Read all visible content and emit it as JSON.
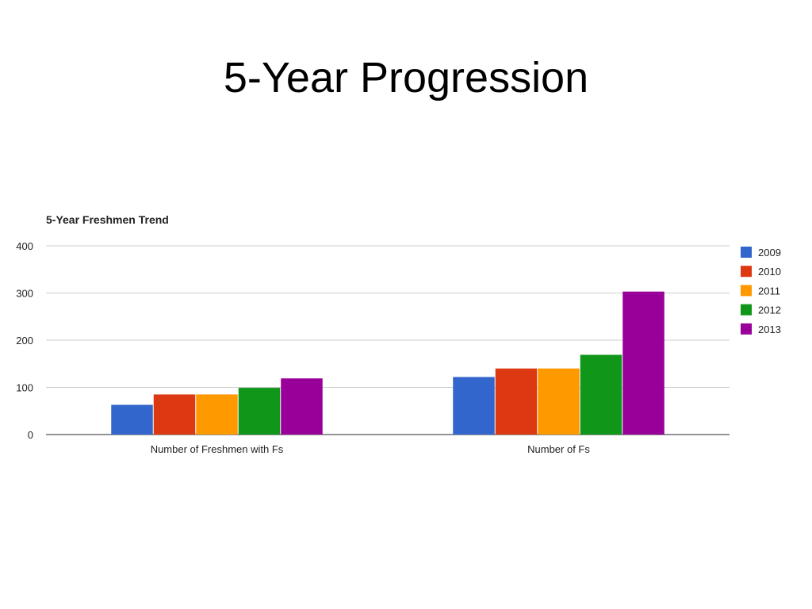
{
  "slide": {
    "title": "5-Year Progression"
  },
  "chart_data": {
    "type": "bar",
    "title": "5-Year Freshmen Trend",
    "categories": [
      "Number of Freshmen with Fs",
      "Number of Fs"
    ],
    "series": [
      {
        "name": "2009",
        "color": "#3366cc",
        "values": [
          63,
          122
        ]
      },
      {
        "name": "2010",
        "color": "#dc3912",
        "values": [
          85,
          140
        ]
      },
      {
        "name": "2011",
        "color": "#ff9900",
        "values": [
          85,
          140
        ]
      },
      {
        "name": "2012",
        "color": "#109618",
        "values": [
          99,
          169
        ]
      },
      {
        "name": "2013",
        "color": "#990099",
        "values": [
          119,
          303
        ]
      }
    ],
    "yticks": [
      "0",
      "100",
      "200",
      "300",
      "400"
    ],
    "ylim": [
      0,
      400
    ],
    "grid": true,
    "legend": "right"
  }
}
